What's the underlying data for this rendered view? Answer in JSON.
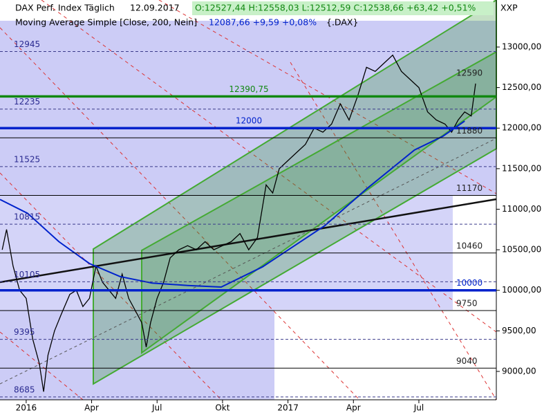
{
  "chart_data": {
    "type": "line",
    "header": {
      "symbol": "DAX Perf. Index Täglich",
      "date": "12.09.2017",
      "quote": "O:12527,44 H:12558,03 L:12512,59 C:12538,66 +63,42 +0,51%",
      "code": "XXP"
    },
    "indicator": {
      "name": "Moving Average Simple [Close, 200, Nein]",
      "quote": "12087,66 +9,59 +0,08%",
      "symbol": "{.DAX}"
    },
    "xlim": [
      -1.2,
      21.55
    ],
    "ylim": [
      8650,
      13580
    ],
    "xticks": [
      {
        "value": 0,
        "label": "2016"
      },
      {
        "value": 3,
        "label": "Apr"
      },
      {
        "value": 6,
        "label": "Jul"
      },
      {
        "value": 9,
        "label": "Okt"
      },
      {
        "value": 12,
        "label": "2017"
      },
      {
        "value": 15,
        "label": "Apr"
      },
      {
        "value": 18,
        "label": "Jul"
      }
    ],
    "yticks": [
      {
        "value": 9000,
        "label": "9000,00"
      },
      {
        "value": 9500,
        "label": "9500,00"
      },
      {
        "value": 10000,
        "label": "10000,00"
      },
      {
        "value": 10500,
        "label": "10500,00"
      },
      {
        "value": 11000,
        "label": "11000,00"
      },
      {
        "value": 11500,
        "label": "11500,00"
      },
      {
        "value": 12000,
        "label": "12000,00"
      },
      {
        "value": 12500,
        "label": "12500,00"
      },
      {
        "value": 13000,
        "label": "13000,00"
      }
    ],
    "series": [
      {
        "name": "DAX",
        "color": "#000000",
        "x": [
          -1.1,
          -0.9,
          -0.6,
          -0.3,
          0,
          0.3,
          0.6,
          0.8,
          1.0,
          1.3,
          1.6,
          2.0,
          2.3,
          2.6,
          2.9,
          3.2,
          3.5,
          3.8,
          4.1,
          4.4,
          4.7,
          5.0,
          5.3,
          5.5,
          5.7,
          6.0,
          6.3,
          6.6,
          7.0,
          7.4,
          7.8,
          8.2,
          8.6,
          9.0,
          9.4,
          9.8,
          10.2,
          10.6,
          11.0,
          11.3,
          11.6,
          12.0,
          12.4,
          12.8,
          13.2,
          13.6,
          14.0,
          14.4,
          14.8,
          15.2,
          15.6,
          16.0,
          16.4,
          16.8,
          17.2,
          17.6,
          18.0,
          18.4,
          18.8,
          19.2,
          19.5,
          19.8,
          20.1,
          20.4,
          20.6
        ],
        "values": [
          10500,
          10750,
          10300,
          10000,
          9900,
          9400,
          9100,
          8750,
          9200,
          9500,
          9700,
          9950,
          10000,
          9800,
          9900,
          10300,
          10100,
          10000,
          9900,
          10200,
          9900,
          9750,
          9600,
          9300,
          9600,
          9900,
          10100,
          10400,
          10500,
          10550,
          10500,
          10600,
          10500,
          10550,
          10600,
          10700,
          10500,
          10650,
          11300,
          11200,
          11500,
          11600,
          11700,
          11800,
          12000,
          11950,
          12050,
          12300,
          12100,
          12400,
          12750,
          12700,
          12800,
          12900,
          12700,
          12600,
          12500,
          12200,
          12100,
          12050,
          11950,
          12100,
          12200,
          12150,
          12550
        ]
      },
      {
        "name": "Moving Average Simple",
        "color": "#0022cc",
        "x": [
          -1.2,
          0.06,
          1.5,
          2.9,
          4.3,
          5.77,
          7.4,
          8.94,
          10.84,
          12.3,
          13.7,
          15.6,
          17.8,
          19.1,
          20.1
        ],
        "values": [
          11120,
          10950,
          10600,
          10330,
          10170,
          10090,
          10060,
          10040,
          10290,
          10550,
          10800,
          11250,
          11730,
          11900,
          12087.66
        ]
      }
    ],
    "levels": [
      {
        "value": 12945,
        "style": "dashed",
        "align": "left",
        "color": "#2a2a90"
      },
      {
        "value": 12590,
        "style": "none",
        "align": "right",
        "color": "#222222"
      },
      {
        "value": 12390.75,
        "label": "12390,75",
        "style": "thick",
        "align": "center",
        "color": "#118811"
      },
      {
        "value": 12235,
        "style": "dashed",
        "align": "left",
        "color": "#2a2a90"
      },
      {
        "value": 12000,
        "style": "thick",
        "align": "center",
        "color": "#0022cc"
      },
      {
        "value": 11880,
        "style": "solid",
        "align": "right",
        "color": "#222222"
      },
      {
        "value": 11525,
        "style": "dashed",
        "align": "left",
        "color": "#2a2a90"
      },
      {
        "value": 11170,
        "style": "solid",
        "align": "right",
        "color": "#222222"
      },
      {
        "value": 10815,
        "style": "dashed",
        "align": "left",
        "color": "#2a2a90"
      },
      {
        "value": 10460,
        "style": "solid",
        "align": "right",
        "color": "#222222"
      },
      {
        "value": 10105,
        "style": "dashed",
        "align": "left",
        "color": "#2a2a90"
      },
      {
        "value": 10000,
        "style": "thick",
        "align": "right",
        "color": "#0022cc"
      },
      {
        "value": 9750,
        "style": "solid",
        "align": "right",
        "color": "#222222"
      },
      {
        "value": 9395,
        "style": "dashed",
        "align": "left",
        "color": "#2a2a90"
      },
      {
        "value": 9040,
        "style": "solid",
        "align": "right",
        "color": "#222222"
      },
      {
        "value": 8685,
        "style": "dashed",
        "align": "left",
        "color": "#2a2a90"
      }
    ]
  }
}
